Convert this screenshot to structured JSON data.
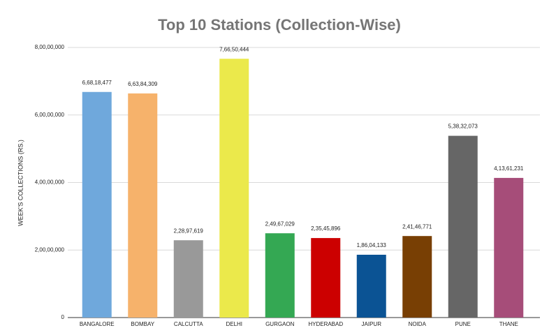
{
  "chart_data": {
    "type": "bar",
    "title": "Top 10 Stations (Collection-Wise)",
    "y_label": "WEEK'S COLLECTIONS (RS.)",
    "categories": [
      "BANGALORE",
      "BOMBAY",
      "CALCUTTA",
      "DELHI",
      "GURGAON",
      "HYDERABAD",
      "JAIPUR",
      "NOIDA",
      "PUNE",
      "THANE"
    ],
    "values": [
      66818477,
      66384309,
      22897619,
      76650444,
      24967029,
      23545896,
      18604133,
      24146771,
      53832073,
      41361231
    ],
    "value_labels": [
      "6,68,18,477",
      "6,63,84,309",
      "2,28,97,619",
      "7,66,50,444",
      "2,49,67,029",
      "2,35,45,896",
      "1,86,04,133",
      "2,41,46,771",
      "5,38,32,073",
      "4,13,61,231"
    ],
    "colors": [
      "#6fa8dc",
      "#f6b26b",
      "#999999",
      "#ebe94b",
      "#34a853",
      "#cc0000",
      "#0b5394",
      "#783f04",
      "#666666",
      "#a64d79"
    ],
    "ylim": [
      0,
      80000000
    ],
    "yticks": [
      0,
      {
        "value": 20000000,
        "label": "2,00,00,000"
      },
      {
        "value": 40000000,
        "label": "4,00,00,000"
      },
      {
        "value": 60000000,
        "label": "6,00,00,000"
      },
      {
        "value": 80000000,
        "label": "8,00,00,000"
      }
    ],
    "grid": true
  }
}
